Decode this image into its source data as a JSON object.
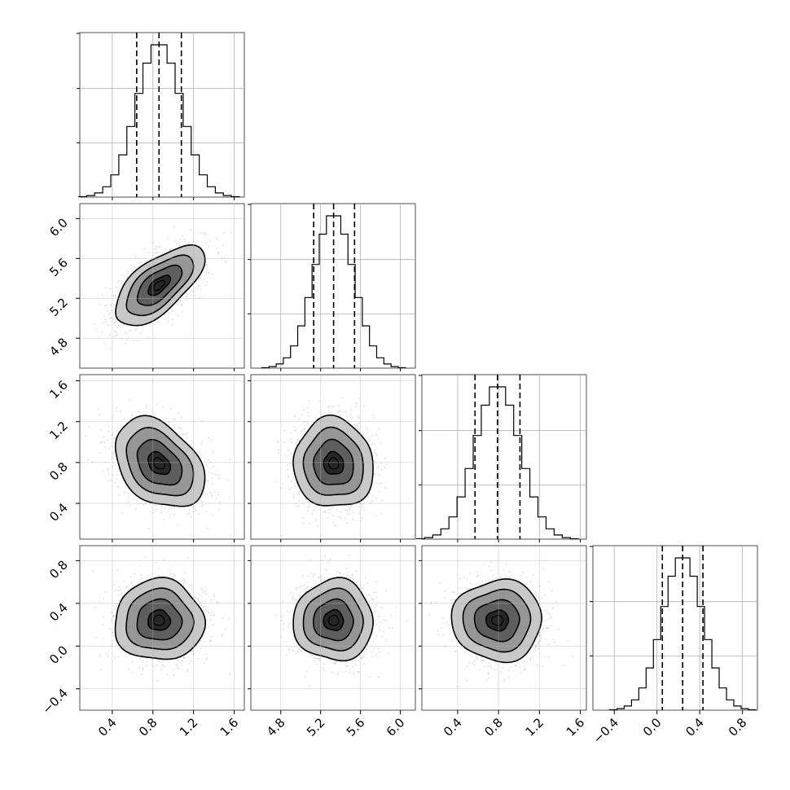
{
  "chart_data": {
    "type": "corner",
    "n_params": 4,
    "grid": true,
    "params": [
      {
        "index": 0,
        "mean": 0.86,
        "std": 0.22,
        "quantiles": [
          0.64,
          0.86,
          1.08
        ],
        "range": [
          0.08,
          1.7
        ],
        "ticks": [
          0.4,
          0.8,
          1.2,
          1.6
        ],
        "ticklabels": [
          "0.4",
          "0.8",
          "1.2",
          "1.6"
        ]
      },
      {
        "index": 1,
        "mean": 5.33,
        "std": 0.2,
        "quantiles": [
          5.13,
          5.33,
          5.54
        ],
        "range": [
          4.5,
          6.15
        ],
        "ticks": [
          4.8,
          5.2,
          5.6,
          6.0
        ],
        "ticklabels": [
          "4.8",
          "5.2",
          "5.6",
          "6.0"
        ]
      },
      {
        "index": 2,
        "mean": 0.79,
        "std": 0.22,
        "quantiles": [
          0.57,
          0.79,
          1.01
        ],
        "range": [
          0.05,
          1.66
        ],
        "ticks": [
          0.4,
          0.8,
          1.2,
          1.6
        ],
        "ticklabels": [
          "0.4",
          "0.8",
          "1.2",
          "1.6"
        ]
      },
      {
        "index": 3,
        "mean": 0.24,
        "std": 0.19,
        "quantiles": [
          0.05,
          0.24,
          0.43
        ],
        "range": [
          -0.6,
          0.94
        ],
        "ticks": [
          -0.4,
          0.0,
          0.4,
          0.8
        ],
        "ticklabels": [
          "−0.4",
          "0.0",
          "0.4",
          "0.8"
        ]
      }
    ],
    "correlations": [
      [
        1.0,
        0.65,
        -0.35,
        0.0
      ],
      [
        0.65,
        1.0,
        -0.05,
        0.0
      ],
      [
        -0.35,
        -0.05,
        1.0,
        0.0
      ],
      [
        0.0,
        0.0,
        0.0,
        1.0
      ]
    ],
    "contour_levels_sigma": [
      0.5,
      1.0,
      1.5,
      2.0
    ],
    "hist_bins": 20,
    "colors": {
      "points": "#7f7f7f",
      "density": "#000000",
      "lines": "#000000",
      "grid": "#b0b0b0"
    }
  }
}
